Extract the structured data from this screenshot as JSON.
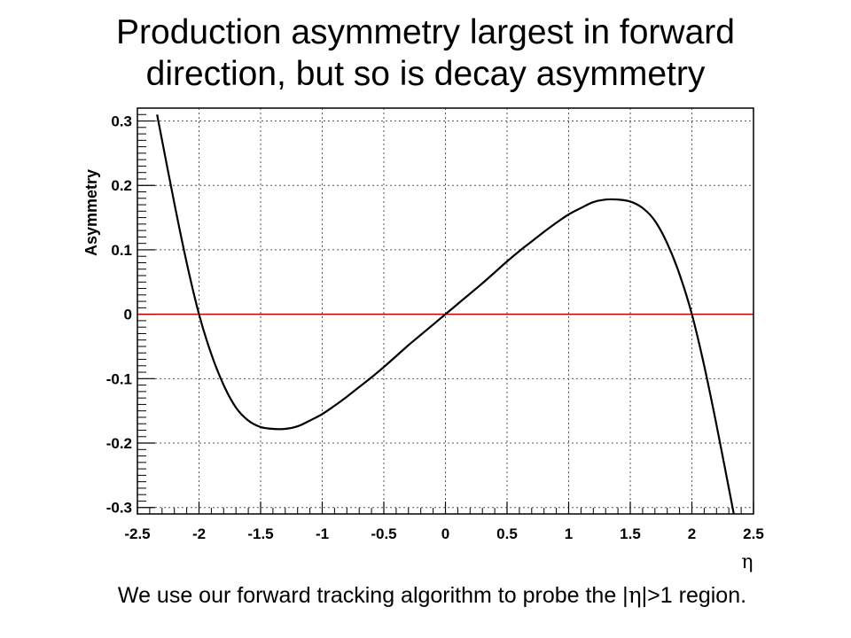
{
  "slide": {
    "title_line1": "Production asymmetry largest in forward",
    "title_line2": "direction, but so is decay asymmetry",
    "footer_before": "We use our forward tracking algorithm to probe the |",
    "footer_symbol": "η",
    "footer_after": "|>1 region."
  },
  "chart_data": {
    "type": "line",
    "title": "",
    "xlabel": "η",
    "ylabel": "Asymmetry",
    "xlim": [
      -2.5,
      2.5
    ],
    "ylim": [
      -0.31,
      0.32
    ],
    "grid": true,
    "x_ticks": [
      "-2.5",
      "-2",
      "-1.5",
      "-1",
      "-0.5",
      "0",
      "0.5",
      "1",
      "1.5",
      "2",
      "2.5"
    ],
    "y_ticks": [
      "-0.3",
      "-0.2",
      "-0.1",
      "0",
      "0.1",
      "0.2",
      "0.3"
    ],
    "reference_line": {
      "y": 0,
      "color": "#c00000"
    },
    "line_color": "#000000",
    "series": [
      {
        "x": [
          -2.34,
          -2.2,
          -2.1,
          -2.0,
          -1.9,
          -1.8,
          -1.7,
          -1.6,
          -1.5,
          -1.4,
          -1.3,
          -1.2,
          -1.1,
          -1.0,
          -0.9,
          -0.8,
          -0.7,
          -0.6,
          -0.5,
          -0.4,
          -0.3,
          -0.2,
          -0.1,
          0.0,
          0.1,
          0.2,
          0.3,
          0.4,
          0.5,
          0.6,
          0.7,
          0.8,
          0.9,
          1.0,
          1.1,
          1.2,
          1.3,
          1.4,
          1.5,
          1.6,
          1.7,
          1.8,
          1.9,
          2.0,
          2.1,
          2.2,
          2.34
        ],
        "y": [
          0.31,
          0.172,
          0.08,
          0.0,
          -0.062,
          -0.11,
          -0.145,
          -0.165,
          -0.175,
          -0.178,
          -0.178,
          -0.174,
          -0.165,
          -0.155,
          -0.142,
          -0.128,
          -0.113,
          -0.098,
          -0.082,
          -0.065,
          -0.048,
          -0.032,
          -0.016,
          0.0,
          0.016,
          0.032,
          0.048,
          0.065,
          0.082,
          0.098,
          0.113,
          0.128,
          0.142,
          0.155,
          0.165,
          0.174,
          0.178,
          0.178,
          0.175,
          0.165,
          0.145,
          0.11,
          0.062,
          0.0,
          -0.08,
          -0.172,
          -0.31
        ]
      }
    ]
  }
}
